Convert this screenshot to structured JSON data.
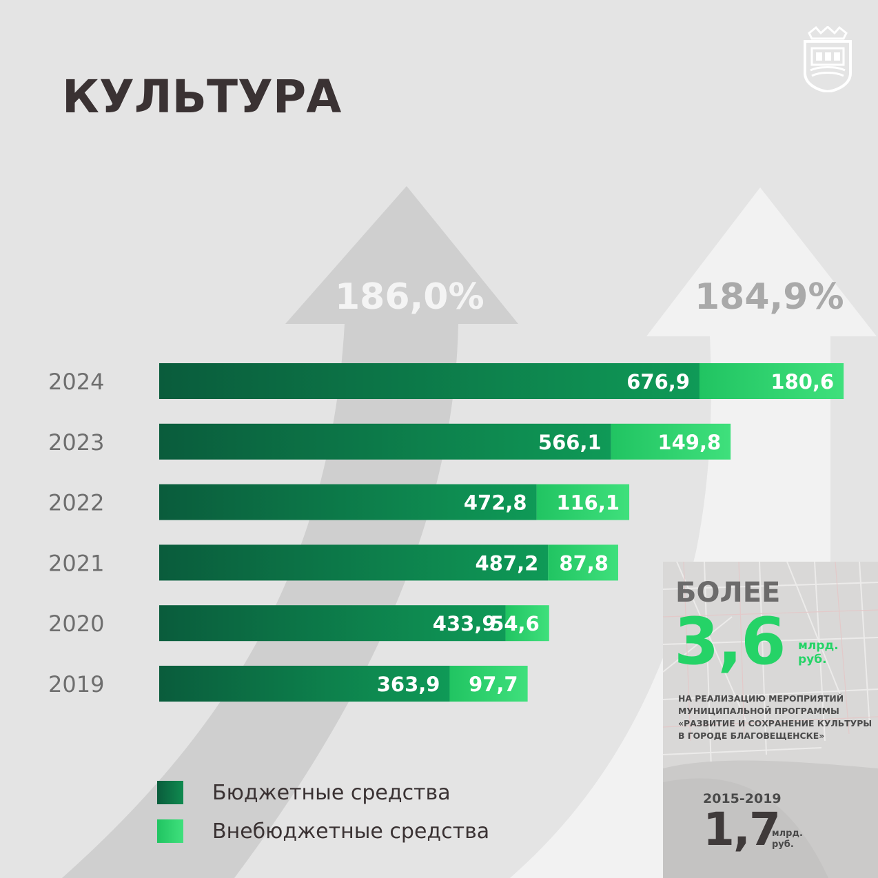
{
  "title": "КУЛЬТУРА",
  "emblem": {
    "icon": "amur-region-coat-of-arms-icon"
  },
  "growth": {
    "budget_growth": "186,0%",
    "offbudget_growth": "184,9%"
  },
  "chart_data": {
    "type": "bar",
    "orientation": "horizontal",
    "stacked": true,
    "categories": [
      "2024",
      "2023",
      "2022",
      "2021",
      "2020",
      "2019"
    ],
    "series": [
      {
        "name": "Бюджетные средства",
        "color": "#0f8a4f",
        "values": [
          676.9,
          566.1,
          472.8,
          487.2,
          433.9,
          363.9
        ],
        "labels": [
          "676,9",
          "566,1",
          "472,8",
          "487,2",
          "433,9",
          "363,9"
        ]
      },
      {
        "name": "Внебюджетные средства",
        "color": "#2fd46d",
        "values": [
          180.6,
          149.8,
          116.1,
          87.8,
          54.6,
          97.7
        ],
        "labels": [
          "180,6",
          "149,8",
          "116,1",
          "87,8",
          "54,6",
          "97,7"
        ]
      }
    ],
    "title": "",
    "xlabel": "",
    "ylabel": "",
    "legend_position": "bottom-left",
    "grid": false
  },
  "legend": {
    "budget": "Бюджетные средства",
    "offbudget": "Внебюджетные средства"
  },
  "info_panel": {
    "more_label": "БОЛЕЕ",
    "big_value": "3,6",
    "big_unit_line1": "млрд.",
    "big_unit_line2": "руб.",
    "description": "НА РЕАЛИЗАЦИЮ МЕРОПРИЯТИЙ МУНИЦИПАЛЬНОЙ ПРОГРАММЫ «РАЗВИТИЕ И СОХРАНЕНИЕ КУЛЬТУРЫ В ГОРОДЕ БЛАГОВЕЩЕНСКЕ»",
    "period": "2015-2019",
    "small_value": "1,7",
    "small_unit_line1": "млрд.",
    "small_unit_line2": "руб."
  },
  "colors": {
    "title": "#3a3233",
    "budget_dark": "#0b6b45",
    "budget_light": "#0f9a57",
    "offbudget": "#2fd46d",
    "accent": "#25d367"
  }
}
